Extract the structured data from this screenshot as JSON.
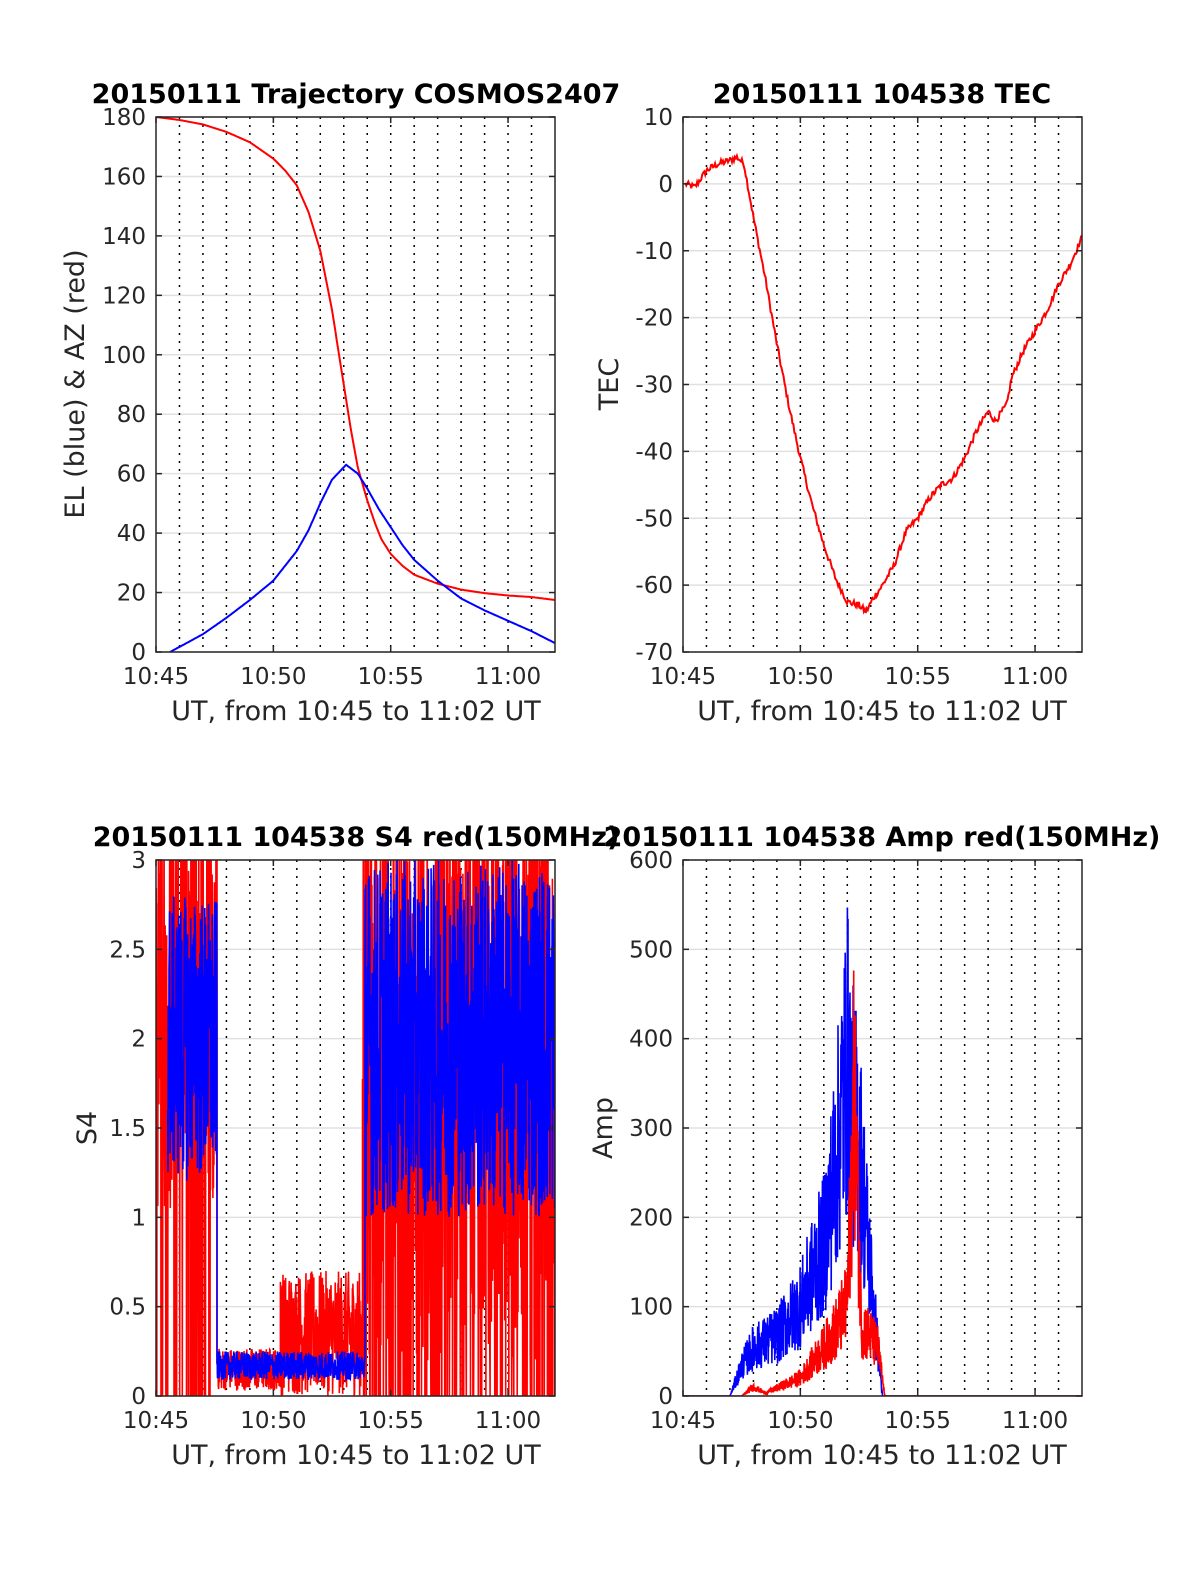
{
  "chart_data": [
    {
      "id": "trajectory",
      "type": "line",
      "title": "20150111 Trajectory COSMOS2407",
      "xlabel": "UT, from 10:45 to 11:02 UT",
      "ylabel": "EL (blue) & AZ (red)",
      "xlim": [
        0,
        17
      ],
      "ylim": [
        0,
        180
      ],
      "xticks": [
        "10:45",
        "10:50",
        "10:55",
        "11:00"
      ],
      "xtick_values": [
        0,
        5,
        10,
        15
      ],
      "yticks": [
        "0",
        "20",
        "40",
        "60",
        "80",
        "100",
        "120",
        "140",
        "160",
        "180"
      ],
      "ytick_values": [
        0,
        20,
        40,
        60,
        80,
        100,
        120,
        140,
        160,
        180
      ],
      "vlines_every_min": 1,
      "grid": true,
      "series": [
        {
          "color": "#ff0000",
          "x": [
            0,
            1,
            2,
            3,
            4,
            5,
            5.5,
            6,
            6.5,
            7,
            7.5,
            8,
            8.3,
            8.6,
            9.0,
            9.3,
            9.6,
            10,
            10.5,
            11,
            12,
            13,
            14,
            15,
            16,
            17
          ],
          "y": [
            180,
            179,
            177.5,
            175,
            171.5,
            166,
            162,
            157,
            148,
            135,
            115,
            90,
            75,
            62,
            51,
            44,
            38,
            33,
            29,
            26,
            23,
            21,
            19.8,
            19,
            18.5,
            17.5
          ]
        },
        {
          "color": "#0000ff",
          "x": [
            0.6,
            2,
            3,
            4,
            5,
            6,
            6.5,
            7,
            7.5,
            8.1,
            8.6,
            9,
            9.5,
            10,
            10.5,
            11,
            12,
            13,
            14,
            15,
            16,
            17
          ],
          "y": [
            0,
            6,
            11.5,
            17.5,
            24,
            34,
            41,
            50,
            58,
            63,
            60,
            55,
            48,
            42,
            36,
            31,
            24,
            18,
            14,
            10.5,
            7,
            3
          ]
        }
      ]
    },
    {
      "id": "tec",
      "type": "line",
      "title": "20150111 104538 TEC",
      "xlabel": "UT, from 10:45 to 11:02 UT",
      "ylabel": "TEC",
      "xlim": [
        0,
        17
      ],
      "ylim": [
        -70,
        10
      ],
      "xticks": [
        "10:45",
        "10:50",
        "10:55",
        "11:00"
      ],
      "xtick_values": [
        0,
        5,
        10,
        15
      ],
      "yticks": [
        "-70",
        "-60",
        "-50",
        "-40",
        "-30",
        "-20",
        "-10",
        "0",
        "10"
      ],
      "ytick_values": [
        -70,
        -60,
        -50,
        -40,
        -30,
        -20,
        -10,
        0,
        10
      ],
      "vlines_every_min": 1,
      "grid": true,
      "series": [
        {
          "color": "#ff0000",
          "x": [
            0.1,
            0.5,
            0.7,
            1,
            1.5,
            2,
            2.3,
            2.6,
            3,
            3.5,
            4,
            4.5,
            5,
            5.5,
            6,
            6.5,
            7,
            7.5,
            7.8,
            8.1,
            8.5,
            9,
            9.5,
            10,
            10.5,
            11,
            11.5,
            12,
            12.5,
            13,
            13.3,
            13.8,
            14,
            14.5,
            15,
            15.5,
            16,
            16.5,
            17
          ],
          "y": [
            0,
            -0.5,
            0.5,
            2,
            3,
            3.5,
            4,
            3,
            -5,
            -14,
            -24,
            -33,
            -41,
            -48,
            -54,
            -59,
            -62.5,
            -63,
            -64,
            -62,
            -60,
            -57,
            -52,
            -50,
            -47,
            -45,
            -44,
            -41,
            -37,
            -34,
            -35.5,
            -33,
            -29,
            -25,
            -22,
            -19,
            -15,
            -12,
            -8
          ]
        }
      ]
    },
    {
      "id": "s4",
      "type": "line",
      "title": "20150111 104538 S4 red(150MHz)",
      "xlabel": "UT, from 10:45 to 11:02 UT",
      "ylabel": "S4",
      "xlim": [
        0,
        17
      ],
      "ylim": [
        0,
        3
      ],
      "xticks": [
        "10:45",
        "10:50",
        "10:55",
        "11:00"
      ],
      "xtick_values": [
        0,
        5,
        10,
        15
      ],
      "yticks": [
        "0",
        "0.5",
        "1",
        "1.5",
        "2",
        "2.5",
        "3"
      ],
      "ytick_values": [
        0,
        0.5,
        1,
        1.5,
        2,
        2.5,
        3
      ],
      "vlines_every_min": 1,
      "grid": true,
      "series": [
        {
          "color": "#ff0000",
          "segments": [
            {
              "from": 0,
              "to": 2.6,
              "base": 2.0,
              "amp": 1.0,
              "drop": 0.3
            },
            {
              "from": 2.6,
              "to": 5.3,
              "base": 0.15,
              "amp": 0.12,
              "drop": 0
            },
            {
              "from": 5.3,
              "to": 8.8,
              "base": 0.35,
              "amp": 0.35,
              "drop": 0
            },
            {
              "from": 8.8,
              "to": 17,
              "base": 1.6,
              "amp": 1.4,
              "drop": 0.35
            }
          ]
        },
        {
          "color": "#0000ff",
          "segments": [
            {
              "from": 0.5,
              "to": 2.6,
              "base": 2.0,
              "amp": 0.8,
              "drop": 0
            },
            {
              "from": 2.6,
              "to": 8.9,
              "base": 0.17,
              "amp": 0.08,
              "drop": 0
            },
            {
              "from": 8.9,
              "to": 17,
              "base": 2.0,
              "amp": 1.0,
              "drop": 0
            }
          ]
        }
      ]
    },
    {
      "id": "amp",
      "type": "line",
      "title": "20150111 104538 Amp red(150MHz)",
      "xlabel": "UT, from 10:45 to 11:02 UT",
      "ylabel": "Amp",
      "xlim": [
        0,
        17
      ],
      "ylim": [
        0,
        600
      ],
      "xticks": [
        "10:45",
        "10:50",
        "10:55",
        "11:00"
      ],
      "xtick_values": [
        0,
        5,
        10,
        15
      ],
      "yticks": [
        "0",
        "100",
        "200",
        "300",
        "400",
        "500",
        "600"
      ],
      "ytick_values": [
        0,
        100,
        200,
        300,
        400,
        500,
        600
      ],
      "vlines_every_min": 1,
      "grid": true,
      "series": [
        {
          "color": "#0000ff",
          "envelope_x": [
            0,
            2,
            2.5,
            3,
            4,
            5,
            6,
            6.5,
            7,
            7.2,
            7.5,
            8,
            8.5,
            8.7,
            17
          ],
          "envelope_y": [
            0,
            0,
            50,
            80,
            100,
            150,
            250,
            380,
            560,
            470,
            420,
            200,
            0,
            0,
            0
          ]
        },
        {
          "color": "#ff0000",
          "envelope_x": [
            0,
            2.5,
            3,
            3.5,
            5,
            6,
            6.5,
            7,
            7.3,
            7.6,
            8.3,
            8.6,
            17
          ],
          "envelope_y": [
            0,
            0,
            15,
            5,
            30,
            80,
            110,
            150,
            510,
            120,
            80,
            0,
            0
          ]
        }
      ]
    }
  ]
}
